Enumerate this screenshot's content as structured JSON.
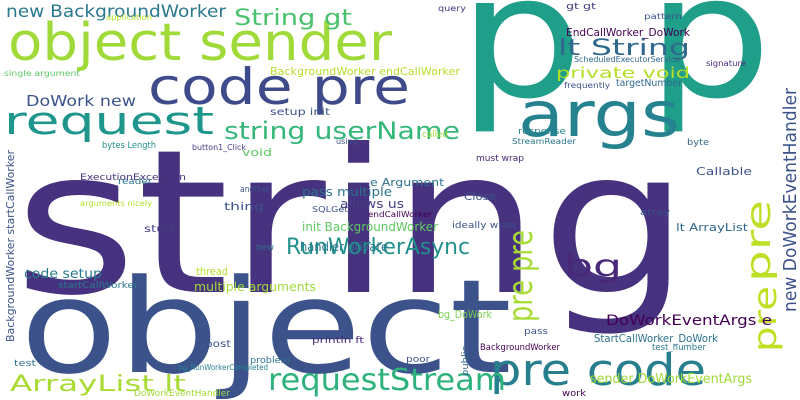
{
  "words": [
    {
      "text": "string",
      "color": "#46327e"
    },
    {
      "text": "object",
      "color": "#3b528b"
    },
    {
      "text": "p p",
      "color": "#1f9e89"
    },
    {
      "text": "object sender",
      "color": "#a0da39"
    },
    {
      "text": "code pre",
      "color": "#3e4a89"
    },
    {
      "text": "args",
      "color": "#26828e"
    },
    {
      "text": "request",
      "color": "#1f968b"
    },
    {
      "text": "string userName",
      "color": "#35b779"
    },
    {
      "text": "new BackgroundWorker",
      "color": "#2a788e"
    },
    {
      "text": "String gt",
      "color": "#4ac16d"
    },
    {
      "text": "lt String",
      "color": "#31688e"
    },
    {
      "text": "private void",
      "color": "#b5de2b"
    },
    {
      "text": "DoWork new",
      "color": "#3b528b"
    },
    {
      "text": "pre code",
      "color": "#277f8e"
    },
    {
      "text": "requestStream",
      "color": "#2db27d"
    },
    {
      "text": "RunWorkerAsync",
      "color": "#21918c"
    },
    {
      "text": "bg",
      "color": "#482878"
    },
    {
      "text": "ArrayList lt",
      "color": "#a8db34"
    },
    {
      "text": "pre pre",
      "color": "#a8db34"
    },
    {
      "text": "pre",
      "color": "#bddf26"
    },
    {
      "text": "pre",
      "color": "#c2df23"
    },
    {
      "text": "new DoWorkEventHandler",
      "color": "#3b528b"
    },
    {
      "text": "DoWorkEventArgs e",
      "color": "#440154"
    },
    {
      "text": "BackgroundWorker endCallWorker",
      "color": "#b5de2b"
    },
    {
      "text": "code setup",
      "color": "#2a788e"
    },
    {
      "text": "multiple arguments",
      "color": "#a0da39"
    },
    {
      "text": "sender DoWorkEventArgs",
      "color": "#a0da39"
    },
    {
      "text": "EndCallWorker_DoWork",
      "color": "#440154"
    },
    {
      "text": "BackgroundWorker startCallWorker",
      "color": "#3b528b"
    },
    {
      "text": "init BackgroundWorker",
      "color": "#5ec962"
    },
    {
      "text": "pass multiple",
      "color": "#2c728e"
    },
    {
      "text": "allows us",
      "color": "#433e85"
    },
    {
      "text": "handler private",
      "color": "#2a788e"
    },
    {
      "text": "e Argument",
      "color": "#2c728e"
    },
    {
      "text": "lt ArrayList",
      "color": "#31688e"
    },
    {
      "text": "Callable",
      "color": "#3b528b"
    },
    {
      "text": "StartCallWorker_DoWork",
      "color": "#2c728e"
    },
    {
      "text": "bg_DoWork",
      "color": "#7ad151"
    },
    {
      "text": "thread",
      "color": "#b5de2b"
    },
    {
      "text": "setup init",
      "color": "#3b528b"
    },
    {
      "text": "bytes Length",
      "color": "#21918c"
    },
    {
      "text": "targetNumber",
      "color": "#31688e"
    },
    {
      "text": "Close",
      "color": "#3b528b"
    },
    {
      "text": "void",
      "color": "#5ec962"
    },
    {
      "text": "thing",
      "color": "#3b528b"
    },
    {
      "text": "stuff",
      "color": "#433e85"
    },
    {
      "text": "post",
      "color": "#3b528b"
    },
    {
      "text": "ideally write",
      "color": "#3b528b"
    },
    {
      "text": "must wrap",
      "color": "#482878"
    },
    {
      "text": "ExecutionException",
      "color": "#46327e"
    },
    {
      "text": "reader",
      "color": "#2a788e"
    },
    {
      "text": "println ft",
      "color": "#482878"
    },
    {
      "text": "problem",
      "color": "#2c728e"
    },
    {
      "text": "BackgroundWorker",
      "color": "#440154"
    },
    {
      "text": "test_number",
      "color": "#2a788e"
    },
    {
      "text": "response",
      "color": "#26828e"
    },
    {
      "text": "StreamReader",
      "color": "#2a788e"
    },
    {
      "text": "ScheduledExecutorService",
      "color": "#31688e"
    },
    {
      "text": "pattern",
      "color": "#3b528b"
    },
    {
      "text": "query",
      "color": "#46327e"
    },
    {
      "text": "gt gt",
      "color": "#46327e"
    },
    {
      "text": "frequently",
      "color": "#3b528b"
    },
    {
      "text": "signature",
      "color": "#482878"
    },
    {
      "text": "public",
      "color": "#31688e"
    },
    {
      "text": "poor",
      "color": "#3b528b"
    },
    {
      "text": "pass",
      "color": "#3b528b"
    },
    {
      "text": "work",
      "color": "#440154"
    },
    {
      "text": "array",
      "color": "#3b528b"
    },
    {
      "text": "endCallWorker",
      "color": "#440154"
    },
    {
      "text": "SQLGet",
      "color": "#3b528b"
    },
    {
      "text": "another",
      "color": "#3b528b"
    },
    {
      "text": "button1_Click",
      "color": "#433e85"
    },
    {
      "text": "new",
      "color": "#2c728e"
    },
    {
      "text": "test",
      "color": "#2c728e"
    },
    {
      "text": "byte",
      "color": "#31688e"
    },
    {
      "text": "DoWorkEventHandler",
      "color": "#a0da39"
    },
    {
      "text": "bg_RunWorkerCompleted",
      "color": "#26828e"
    },
    {
      "text": "startCallWorker",
      "color": "#2a788e"
    },
    {
      "text": "arguments nicely",
      "color": "#b5de2b"
    },
    {
      "text": "single argument",
      "color": "#5ec962"
    },
    {
      "text": "application",
      "color": "#b5de2b"
    },
    {
      "text": "called",
      "color": "#a0da39"
    },
    {
      "text": "using",
      "color": "#3b528b"
    }
  ]
}
